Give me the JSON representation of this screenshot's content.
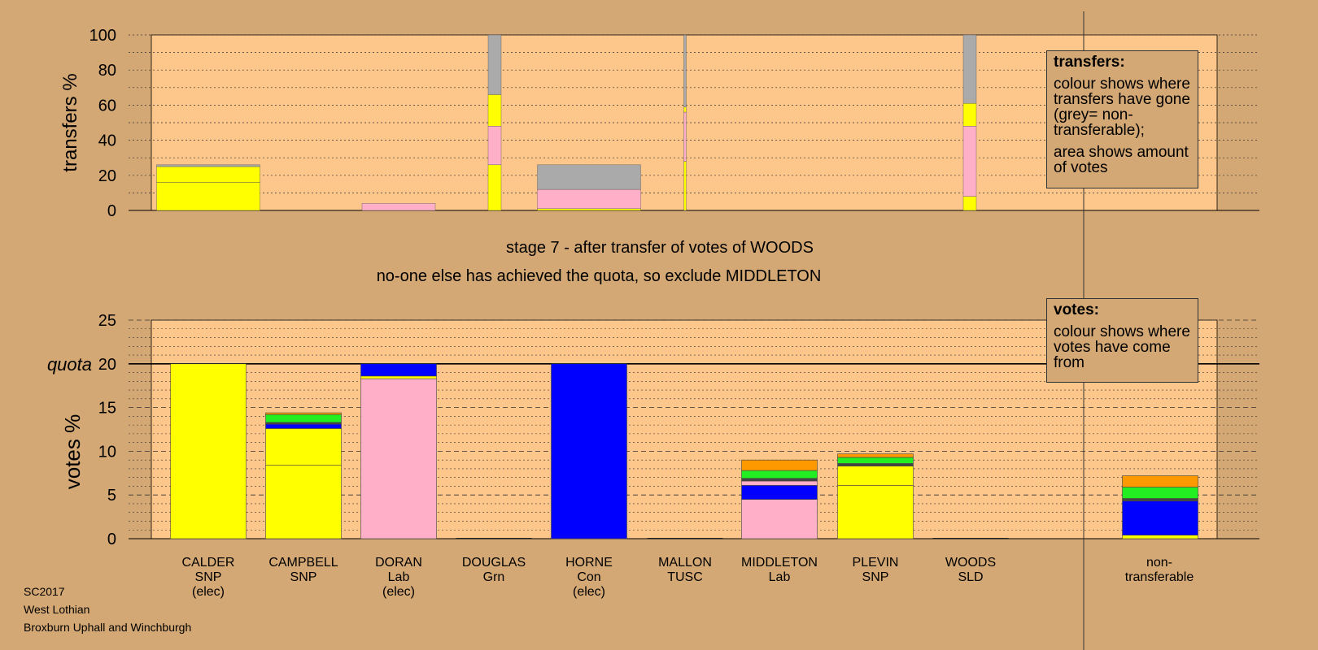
{
  "chart_data": [
    {
      "type": "bar",
      "stacked": true,
      "ylabel": "transfers %",
      "ylim": [
        0,
        100
      ],
      "yticks": [
        "0",
        "20",
        "40",
        "60",
        "80",
        "100"
      ],
      "grid": true,
      "colors": {
        "SNP": "#ffff00",
        "Lab": "#ffb0c8",
        "Con": "#0000ff",
        "Grn": "#22ee22",
        "TUSC": "#444444",
        "SLD": "#ff9900",
        "non-transferable": "#aaaaaa"
      },
      "categories": [
        "CALDER",
        "CAMPBELL",
        "DORAN",
        "DOUGLAS",
        "HORNE",
        "MALLON",
        "MIDDLETON",
        "PLEVIN",
        "WOODS",
        "non-transferable"
      ],
      "bars": [
        {
          "category": "CALDER",
          "segments": [
            {
              "party": "SNP",
              "value": 16
            },
            {
              "party": "SNP",
              "value": 9
            },
            {
              "party": "non-transferable",
              "value": 1
            }
          ]
        },
        {
          "category": "CAMPBELL",
          "segments": []
        },
        {
          "category": "DORAN",
          "segments": [
            {
              "party": "Lab",
              "value": 4
            }
          ]
        },
        {
          "category": "DOUGLAS",
          "segments": [
            {
              "party": "SNP",
              "value": 26
            },
            {
              "party": "Lab",
              "value": 22
            },
            {
              "party": "SNP",
              "value": 18
            },
            {
              "party": "non-transferable",
              "value": 34
            }
          ]
        },
        {
          "category": "HORNE",
          "segments": [
            {
              "party": "SNP",
              "value": 1
            },
            {
              "party": "Lab",
              "value": 11
            },
            {
              "party": "non-transferable",
              "value": 14
            }
          ]
        },
        {
          "category": "MALLON",
          "segments": [
            {
              "party": "SNP",
              "value": 28
            },
            {
              "party": "Lab",
              "value": 28
            },
            {
              "party": "SNP",
              "value": 3
            },
            {
              "party": "non-transferable",
              "value": 41
            }
          ]
        },
        {
          "category": "MIDDLETON",
          "segments": []
        },
        {
          "category": "PLEVIN",
          "segments": [
            {
              "party": "SNP",
              "value": 8
            },
            {
              "party": "Lab",
              "value": 40
            },
            {
              "party": "SNP",
              "value": 13
            },
            {
              "party": "non-transferable",
              "value": 39
            }
          ]
        },
        {
          "category": "WOODS",
          "segments": []
        },
        {
          "category": "non-transferable",
          "segments": []
        }
      ]
    },
    {
      "type": "bar",
      "stacked": true,
      "ylabel": "votes %",
      "ylim": [
        0,
        25
      ],
      "yticks": [
        "0",
        "5",
        "10",
        "15",
        "20",
        "25"
      ],
      "quota": 20,
      "quota_label": "quota",
      "grid": true,
      "colors": {
        "SNP": "#ffff00",
        "Lab": "#ffb0c8",
        "Con": "#0000ff",
        "Grn": "#22ee22",
        "TUSC": "#444444",
        "SLD": "#ff9900",
        "non-transferable": "#aaaaaa"
      },
      "categories": [
        "CALDER",
        "CAMPBELL",
        "DORAN",
        "DOUGLAS",
        "HORNE",
        "MALLON",
        "MIDDLETON",
        "PLEVIN",
        "WOODS",
        "non-transferable"
      ],
      "bars": [
        {
          "category": "CALDER",
          "segments": [
            {
              "party": "SNP",
              "value": 20
            }
          ]
        },
        {
          "category": "CAMPBELL",
          "segments": [
            {
              "party": "SNP",
              "value": 8.4
            },
            {
              "party": "SNP",
              "value": 4.2
            },
            {
              "party": "Con",
              "value": 0.5
            },
            {
              "party": "TUSC",
              "value": 0.2
            },
            {
              "party": "Grn",
              "value": 0.9
            },
            {
              "party": "SLD",
              "value": 0.2
            }
          ]
        },
        {
          "category": "DORAN",
          "segments": [
            {
              "party": "Lab",
              "value": 18.3
            },
            {
              "party": "SNP",
              "value": 0.3
            },
            {
              "party": "Con",
              "value": 1.4
            }
          ]
        },
        {
          "category": "DOUGLAS",
          "segments": []
        },
        {
          "category": "HORNE",
          "segments": [
            {
              "party": "Con",
              "value": 20
            }
          ]
        },
        {
          "category": "MALLON",
          "segments": []
        },
        {
          "category": "MIDDLETON",
          "segments": [
            {
              "party": "Lab",
              "value": 4.5
            },
            {
              "party": "Con",
              "value": 1.6
            },
            {
              "party": "Lab",
              "value": 0.5
            },
            {
              "party": "TUSC",
              "value": 0.3
            },
            {
              "party": "Grn",
              "value": 0.9
            },
            {
              "party": "SLD",
              "value": 1.2
            }
          ]
        },
        {
          "category": "PLEVIN",
          "segments": [
            {
              "party": "SNP",
              "value": 6.1
            },
            {
              "party": "SNP",
              "value": 2.2
            },
            {
              "party": "TUSC",
              "value": 0.3
            },
            {
              "party": "Grn",
              "value": 0.7
            },
            {
              "party": "SLD",
              "value": 0.4
            }
          ]
        },
        {
          "category": "WOODS",
          "segments": []
        },
        {
          "category": "non-transferable",
          "segments": [
            {
              "party": "SNP",
              "value": 0.4
            },
            {
              "party": "Con",
              "value": 3.9
            },
            {
              "party": "TUSC",
              "value": 0.3
            },
            {
              "party": "Grn",
              "value": 1.3
            },
            {
              "party": "SLD",
              "value": 1.3
            }
          ]
        }
      ]
    }
  ],
  "candidates": [
    {
      "name": "CALDER",
      "party": "SNP",
      "status": "(elec)"
    },
    {
      "name": "CAMPBELL",
      "party": "SNP",
      "status": ""
    },
    {
      "name": "DORAN",
      "party": "Lab",
      "status": "(elec)"
    },
    {
      "name": "DOUGLAS",
      "party": "Grn",
      "status": ""
    },
    {
      "name": "HORNE",
      "party": "Con",
      "status": "(elec)"
    },
    {
      "name": "MALLON",
      "party": "TUSC",
      "status": ""
    },
    {
      "name": "MIDDLETON",
      "party": "Lab",
      "status": ""
    },
    {
      "name": "PLEVIN",
      "party": "SNP",
      "status": ""
    },
    {
      "name": "WOODS",
      "party": "SLD",
      "status": ""
    },
    {
      "name": "non-",
      "party": "transferable",
      "status": ""
    }
  ],
  "stage_title": "stage 7 - after transfer of votes of WOODS",
  "stage_subtitle": "no-one else has achieved the quota, so exclude MIDDLETON",
  "legend_transfers": {
    "title": "transfers:",
    "line1": "colour shows where transfers have gone (grey= non-transferable);",
    "line2": "area shows amount of votes"
  },
  "legend_votes": {
    "title": "votes:",
    "line1": "colour shows where votes have come from"
  },
  "footer": {
    "line1": "SC2017",
    "line2": "West Lothian",
    "line3": "Broxburn Uphall and Winchburgh"
  }
}
